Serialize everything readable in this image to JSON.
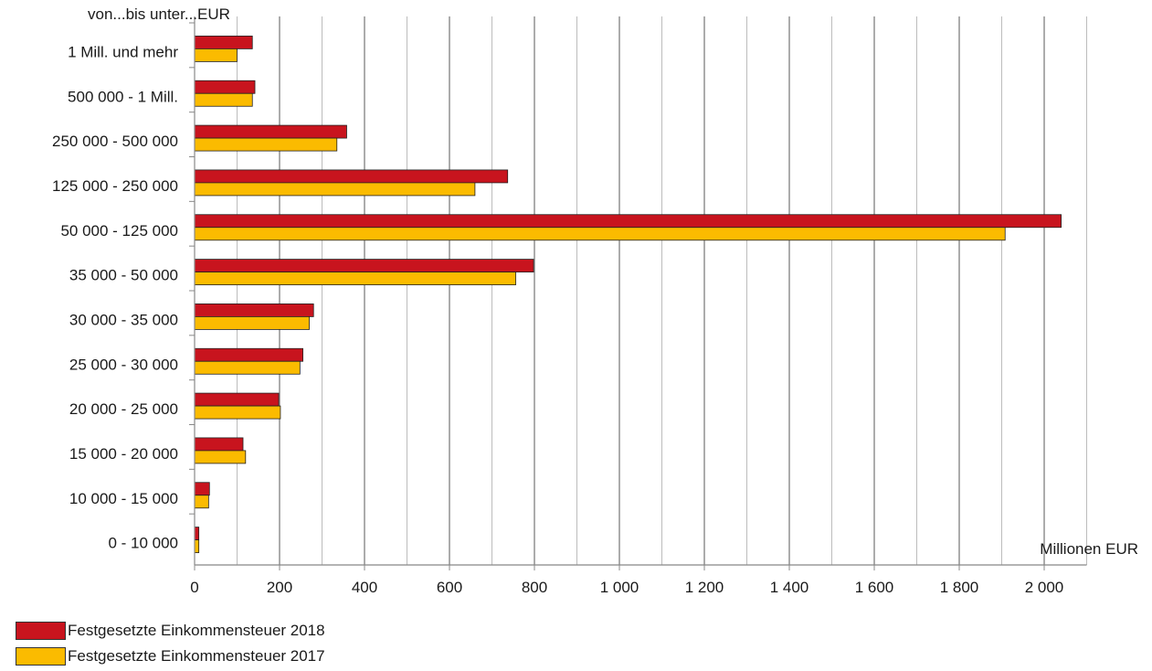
{
  "chart_data": {
    "type": "bar",
    "orientation": "horizontal",
    "ylabel": "von...bis unter...EUR",
    "xlabel": "Millionen EUR",
    "xlim": [
      0,
      2100
    ],
    "xticks": [
      0,
      200,
      400,
      600,
      800,
      1000,
      1200,
      1400,
      1600,
      1800,
      2000
    ],
    "xtick_labels": [
      "0",
      "200",
      "400",
      "600",
      "800",
      "1 000",
      "1 200",
      "1 400",
      "1 600",
      "1 800",
      "2 000"
    ],
    "grid": "vertical",
    "categories": [
      "1 Mill.  und mehr",
      "500 000 - 1 Mill.",
      "250 000 - 500 000",
      "125 000 - 250 000",
      "50 000 - 125 000",
      "35 000 - 50 000",
      "30 000 - 35 000",
      "25 000 - 30 000",
      "20 000 - 25 000",
      "15 000 - 20 000",
      "10 000 - 15 000",
      "0 - 10 000"
    ],
    "series": [
      {
        "name": "Festgesetzte Einkommensteuer 2018",
        "color": "#c8141e",
        "values": [
          136,
          142,
          358,
          737,
          2040,
          798,
          280,
          255,
          198,
          114,
          35,
          10
        ]
      },
      {
        "name": "Festgesetzte Einkommensteuer 2017",
        "color": "#fbbb00",
        "values": [
          100,
          136,
          335,
          660,
          1908,
          756,
          270,
          248,
          202,
          120,
          33,
          10
        ]
      }
    ],
    "legend_position": "bottom-left"
  }
}
